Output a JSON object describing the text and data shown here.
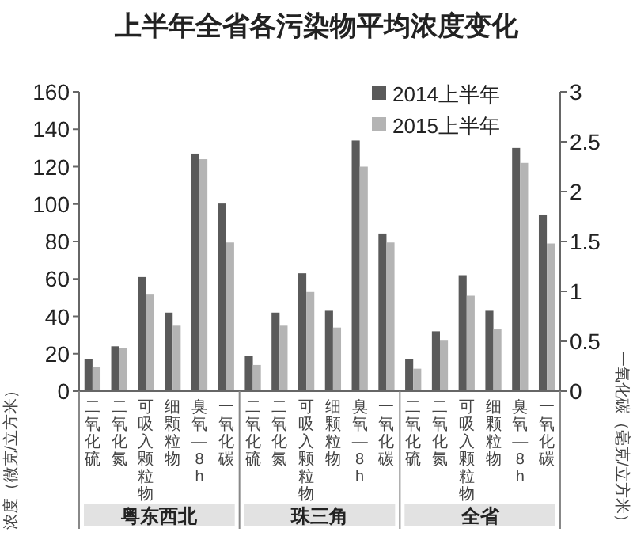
{
  "chart_data": {
    "type": "bar",
    "title": "上半年全省各污染物平均浓度变化",
    "ylabel": "浓度（微克/立方米）",
    "y2label": "一氧化碳（毫克/立方米）",
    "categories": [
      "二氧化硫",
      "二氧化氮",
      "可吸入颗粒物",
      "细颗粒物",
      "臭氧—8h",
      "一氧化碳",
      "二氧化硫",
      "二氧化氮",
      "可吸入颗粒物",
      "细颗粒物",
      "臭氧—8h",
      "一氧化碳",
      "二氧化硫",
      "二氧化氮",
      "可吸入颗粒物",
      "细颗粒物",
      "臭氧—8h",
      "一氧化碳"
    ],
    "series": [
      {
        "name": "2014上半年",
        "color": "#5a5a5a",
        "values": [
          17,
          24,
          61,
          42,
          127,
          null,
          19,
          42,
          63,
          43,
          134,
          null,
          17,
          32,
          62,
          43,
          130,
          null
        ]
      },
      {
        "name": "2015上半年",
        "color": "#b4b4b4",
        "values": [
          13,
          23,
          52,
          35,
          124,
          null,
          14,
          35,
          53,
          34,
          120,
          null,
          12,
          27,
          51,
          33,
          122,
          null
        ]
      },
      {
        "color": "#5a5a5a",
        "axis": "y2",
        "values": [
          null,
          null,
          null,
          null,
          null,
          1.88,
          null,
          null,
          null,
          null,
          null,
          1.58,
          null,
          null,
          null,
          null,
          null,
          1.77
        ]
      },
      {
        "color": "#b4b4b4",
        "axis": "y2",
        "values": [
          null,
          null,
          null,
          null,
          null,
          1.49,
          null,
          null,
          null,
          null,
          null,
          1.49,
          null,
          null,
          null,
          null,
          null,
          1.48
        ]
      }
    ],
    "ylim": [
      0,
      160
    ],
    "yticks": [
      0,
      20,
      40,
      60,
      80,
      100,
      120,
      140,
      160
    ],
    "y2lim": [
      0,
      3
    ],
    "y2ticks": [
      0,
      0.5,
      1,
      1.5,
      2,
      2.5,
      3
    ],
    "annotations": [
      "粤东西北",
      "珠三角",
      "全省"
    ],
    "legend": "top right",
    "grid": false
  }
}
